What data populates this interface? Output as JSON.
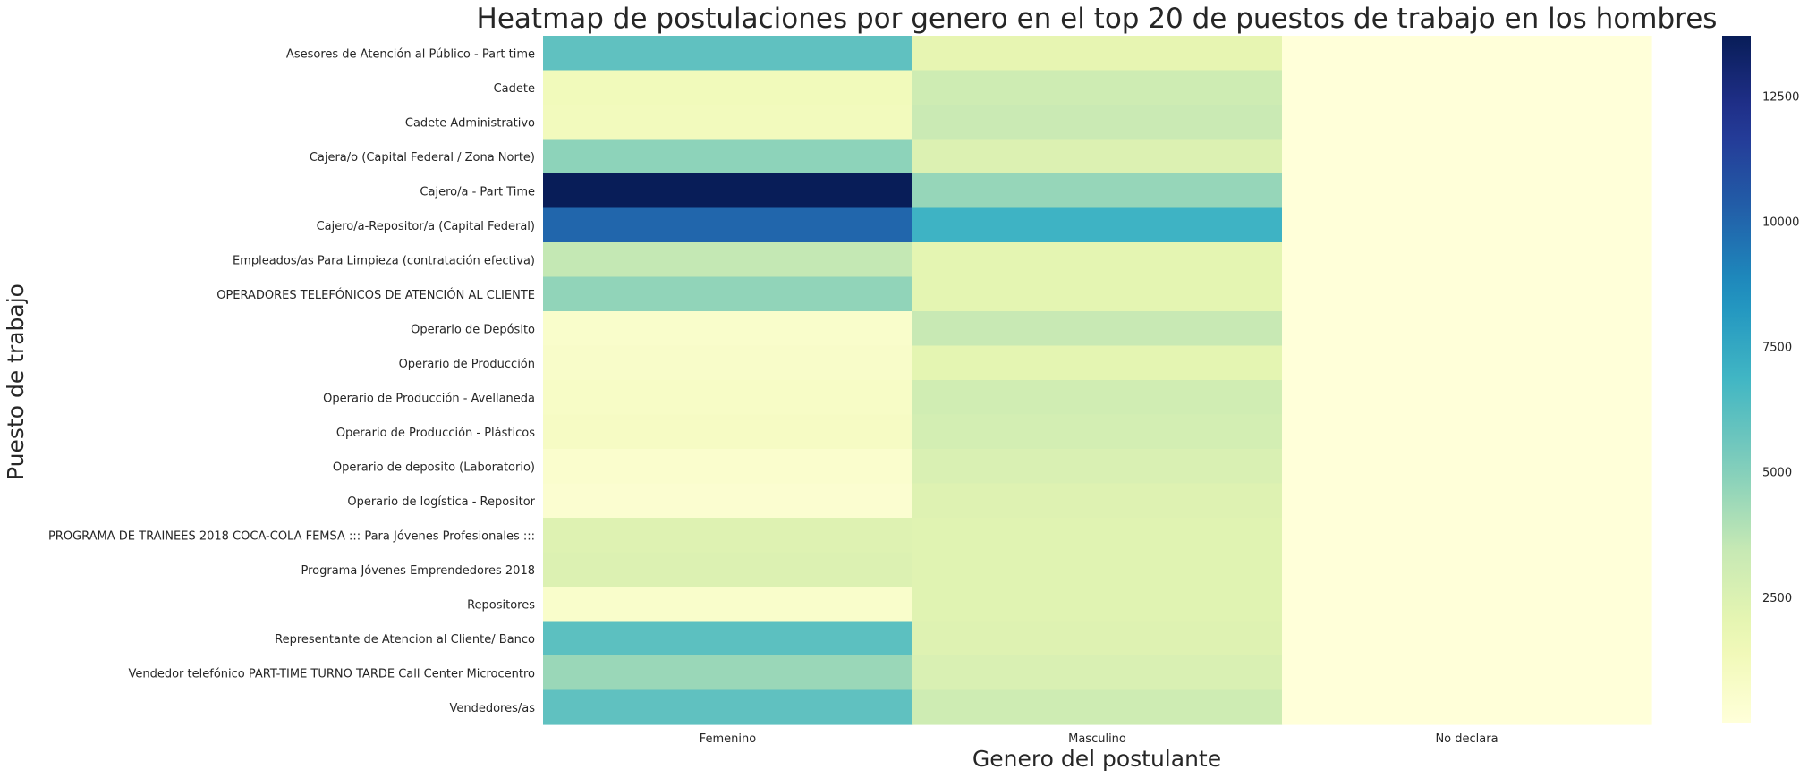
{
  "chart_data": {
    "type": "heatmap",
    "title": "Heatmap de postulaciones por genero en el top 20 de puestos de trabajo en los hombres",
    "xlabel": "Genero del postulante",
    "ylabel": "Puesto de trabajo",
    "columns": [
      "Femenino",
      "Masculino",
      "No declara"
    ],
    "rows": [
      "Asesores de Atención al Público - Part time",
      "Cadete",
      "Cadete Administrativo",
      "Cajera/o (Capital Federal / Zona Norte)",
      "Cajero/a - Part Time",
      "Cajero/a-Repositor/a (Capital Federal)",
      "Empleados/as Para Limpieza (contratación efectiva)",
      "OPERADORES TELEFÓNICOS DE ATENCIÓN AL CLIENTE",
      "Operario de Depósito",
      "Operario de Producción",
      "Operario de Producción - Avellaneda",
      "Operario de Producción - Plásticos",
      "Operario de deposito (Laboratorio)",
      "Operario de logística - Repositor",
      "PROGRAMA DE TRAINEES 2018 COCA-COLA FEMSA ::: Para Jóvenes Profesionales :::",
      "Programa Jóvenes Emprendedores 2018",
      "Repositores",
      "Representante de Atencion al Cliente/ Banco",
      "Vendedor telefónico PART-TIME TURNO TARDE Call Center Microcentro",
      "Vendedores/as"
    ],
    "values": [
      [
        6000,
        2000,
        20
      ],
      [
        1300,
        3100,
        20
      ],
      [
        1200,
        3300,
        20
      ],
      [
        4800,
        2500,
        20
      ],
      [
        13700,
        4600,
        20
      ],
      [
        10000,
        7000,
        20
      ],
      [
        3500,
        2100,
        20
      ],
      [
        4700,
        2100,
        20
      ],
      [
        600,
        3400,
        20
      ],
      [
        700,
        2100,
        20
      ],
      [
        800,
        3000,
        20
      ],
      [
        900,
        2900,
        20
      ],
      [
        500,
        2600,
        20
      ],
      [
        400,
        2400,
        20
      ],
      [
        2400,
        2300,
        20
      ],
      [
        2500,
        2300,
        20
      ],
      [
        600,
        2300,
        20
      ],
      [
        6100,
        2400,
        20
      ],
      [
        4500,
        2600,
        20
      ],
      [
        6000,
        3100,
        20
      ]
    ],
    "colorbar": {
      "colormap": "YlGnBu",
      "min": 0,
      "max": 13700,
      "ticks": [
        2500,
        5000,
        7500,
        10000,
        12500
      ]
    },
    "grid": false
  }
}
